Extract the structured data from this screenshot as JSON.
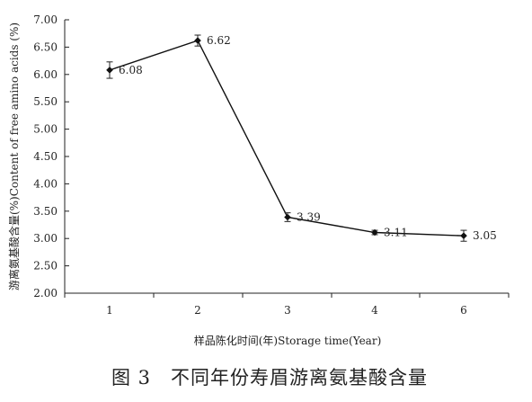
{
  "chart_data": {
    "type": "line",
    "categories": [
      "1",
      "2",
      "3",
      "4",
      "6"
    ],
    "values": [
      6.08,
      6.62,
      3.39,
      3.11,
      3.05
    ],
    "error": [
      0.15,
      0.1,
      0.08,
      0.04,
      0.1
    ],
    "data_labels": [
      "6.08",
      "6.62",
      "3.39",
      "3.11",
      "3.05"
    ],
    "y_ticks": [
      "2.00",
      "2.50",
      "3.00",
      "3.50",
      "4.00",
      "4.50",
      "5.00",
      "5.50",
      "6.00",
      "6.50",
      "7.00"
    ],
    "ylim": [
      2.0,
      7.0
    ],
    "xlabel": "样品陈化时间(年)Storage time(Year)",
    "ylabel": "游离氨基酸含量(%)Content of free amino acids (%)",
    "grid": false,
    "legend": "none",
    "marker": "diamond",
    "line_color": "#111111"
  },
  "caption": "图 3　不同年份寿眉游离氨基酸含量"
}
